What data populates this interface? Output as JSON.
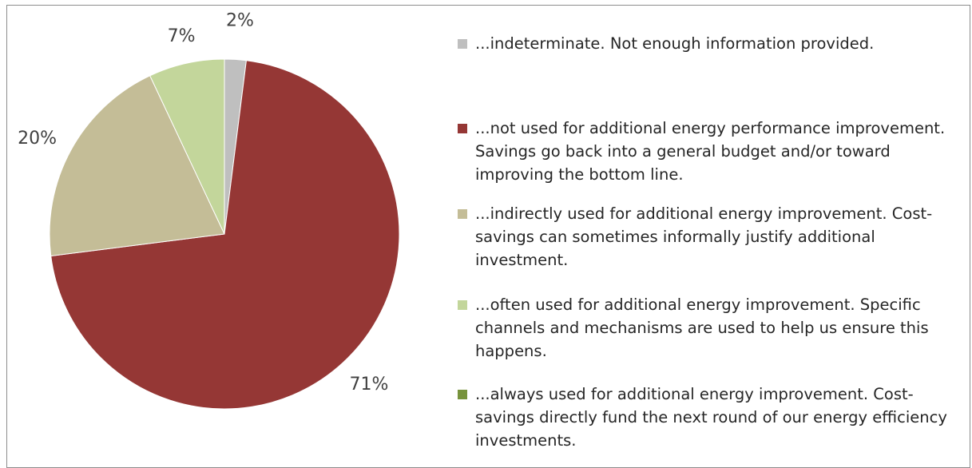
{
  "chart_data": {
    "type": "pie",
    "title": "",
    "slices": [
      {
        "label": "...indeterminate. Not enough information provided.",
        "value": 2,
        "value_label": "2%",
        "color": "#bfbfbf"
      },
      {
        "label": "...not used for additional energy performance improvement. Savings go back into a general budget and/or toward improving the bottom line.",
        "value": 71,
        "value_label": "71%",
        "color": "#953735"
      },
      {
        "label": "...indirectly used for additional energy improvement. Cost-savings can sometimes informally justify additional investment.",
        "value": 20,
        "value_label": "20%",
        "color": "#c4bd97"
      },
      {
        "label": "...often used for additional energy improvement. Specific channels and mechanisms are used to help us ensure this happens.",
        "value": 7,
        "value_label": "7%",
        "color": "#c3d69b"
      },
      {
        "label": "...always used for additional energy improvement. Cost-savings directly fund the next round of our energy efficiency investments.",
        "value": 0,
        "value_label": "",
        "color": "#77933c"
      }
    ],
    "legend_position": "right"
  }
}
